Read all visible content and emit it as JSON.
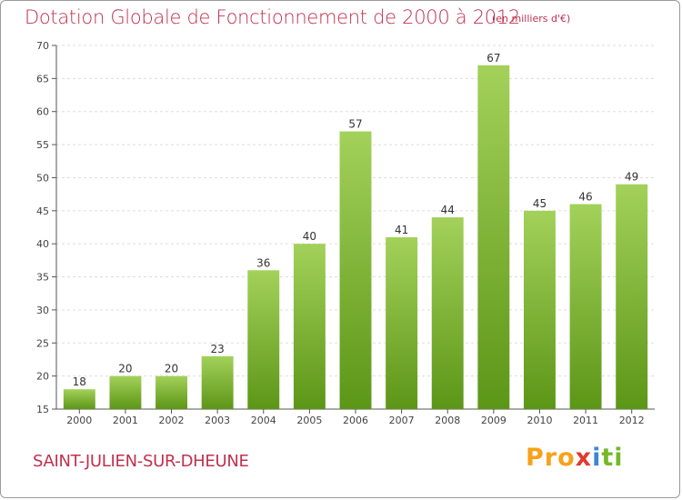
{
  "header": {
    "title": "Dotation Globale de Fonctionnement de 2000 à 2012",
    "unit": "(en milliers d'€)"
  },
  "footer": {
    "commune": "SAINT-JULIEN-SUR-DHEUNE",
    "logo_parts": [
      "Pro",
      "x",
      "i",
      "ti"
    ]
  },
  "colors": {
    "title": "#c0304e",
    "bar_light": "#a3d15a",
    "bar_dark": "#5c9617",
    "grid": "#dddddd",
    "axis": "#555555"
  },
  "chart_data": {
    "type": "bar",
    "title": "Dotation Globale de Fonctionnement de 2000 à 2012",
    "subtitle": "(en milliers d'€)",
    "xlabel": "",
    "ylabel": "",
    "categories": [
      "2000",
      "2001",
      "2002",
      "2003",
      "2004",
      "2005",
      "2006",
      "2007",
      "2008",
      "2009",
      "2010",
      "2011",
      "2012"
    ],
    "values": [
      18,
      20,
      20,
      23,
      36,
      40,
      57,
      41,
      44,
      67,
      45,
      46,
      49
    ],
    "ylim": [
      15,
      70
    ],
    "yticks": [
      15,
      20,
      25,
      30,
      35,
      40,
      45,
      50,
      55,
      60,
      65,
      70
    ],
    "grid": true,
    "data_labels": true
  }
}
